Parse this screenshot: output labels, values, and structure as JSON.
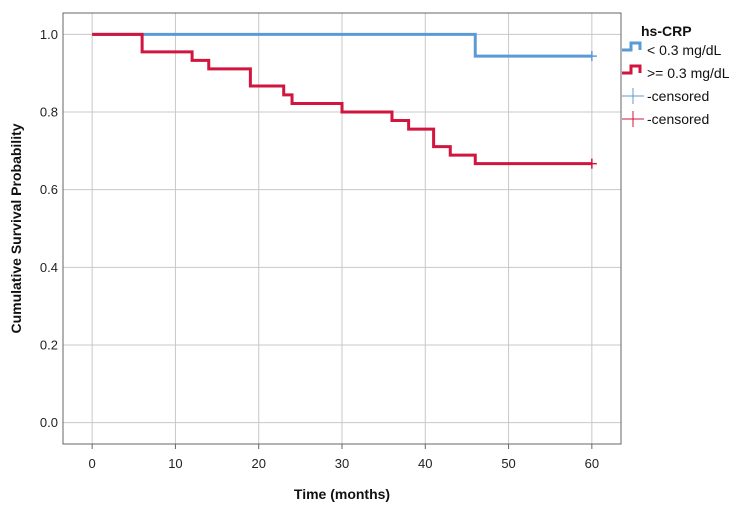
{
  "chart_data": {
    "type": "line",
    "step": true,
    "xlabel": "Time (months)",
    "ylabel": "Cumulative Survival Probability",
    "xlim": [
      -3.5,
      63.5
    ],
    "ylim": [
      -0.055,
      1.055
    ],
    "xticks": [
      0,
      10,
      20,
      30,
      40,
      50,
      60
    ],
    "yticks": [
      0.0,
      0.2,
      0.4,
      0.6,
      0.8,
      1.0
    ],
    "xtick_labels": [
      "0",
      "10",
      "20",
      "30",
      "40",
      "50",
      "60"
    ],
    "ytick_labels": [
      "0.0",
      "0.2",
      "0.4",
      "0.6",
      "0.8",
      "1.0"
    ],
    "grid": true,
    "legend": {
      "title": "hs-CRP",
      "placement": "right",
      "entries": [
        "< 0.3 mg/dL",
        ">= 0.3 mg/dL",
        "-censored",
        "-censored"
      ]
    },
    "series": [
      {
        "name": "< 0.3 mg/dL",
        "color": "#5b9bd5",
        "x": [
          0,
          46,
          60
        ],
        "y": [
          1.0,
          0.944,
          0.944
        ],
        "censored": [
          {
            "x": 60,
            "y": 0.944
          }
        ]
      },
      {
        "name": ">= 0.3 mg/dL",
        "color": "#d0153f",
        "x": [
          0,
          6,
          12,
          14,
          19,
          23,
          24,
          30,
          36,
          38,
          41,
          43,
          46,
          60
        ],
        "y": [
          1.0,
          0.955,
          0.933,
          0.911,
          0.867,
          0.844,
          0.822,
          0.8,
          0.778,
          0.756,
          0.711,
          0.689,
          0.667,
          0.667
        ],
        "censored": [
          {
            "x": 60,
            "y": 0.667
          }
        ]
      }
    ]
  }
}
